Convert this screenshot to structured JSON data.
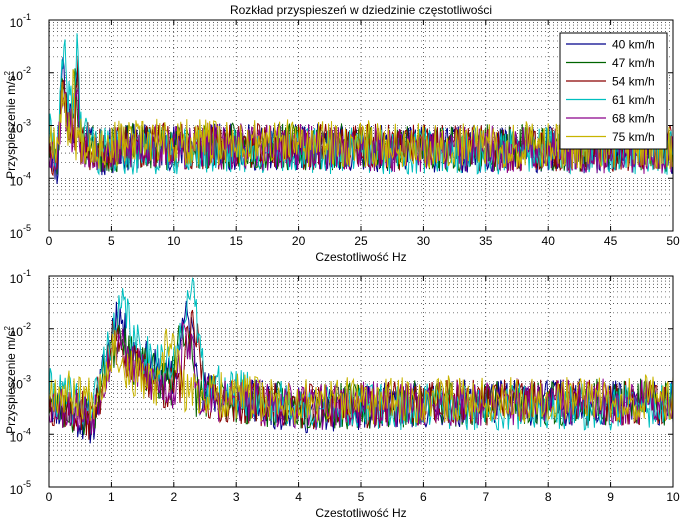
{
  "figure": {
    "background": "#ffffff"
  },
  "chart_data": [
    {
      "type": "line",
      "title": "Rozkład przyspieszeń w dziedzinie częstotliwości",
      "xlabel": "Czestotliwość Hz",
      "ylabel": "Przyspieszenie m/s",
      "ylabel_exponent": "2",
      "xlim": [
        0,
        50
      ],
      "ylim_exp": [
        -5,
        -1
      ],
      "yscale": "log",
      "xticks": [
        0,
        5,
        10,
        15,
        20,
        25,
        30,
        35,
        40,
        45,
        50
      ],
      "yticks": [
        "10",
        "10",
        "10",
        "10",
        "10"
      ],
      "ytick_exponents": [
        "-1",
        "-2",
        "-3",
        "-4",
        "-5"
      ],
      "grid": "dotted",
      "legend_position": "top-right",
      "series": [
        {
          "name": "40 km/h",
          "color": "#00008b",
          "peaks": [
            [
              1.1,
              0.024
            ],
            [
              2.2,
              0.018
            ]
          ],
          "seed": 11,
          "base": [
            [
              0,
              0.00055
            ],
            [
              0.7,
              0.0002
            ],
            [
              1.0,
              0.01
            ],
            [
              1.8,
              0.0015
            ],
            [
              2.6,
              0.0007
            ],
            [
              4,
              0.00035
            ],
            [
              7,
              0.0005
            ],
            [
              50,
              0.0004
            ]
          ]
        },
        {
          "name": "47 km/h",
          "color": "#006400",
          "peaks": [
            [
              1.15,
              0.012
            ],
            [
              2.15,
              0.012
            ]
          ],
          "seed": 23,
          "base": [
            [
              0,
              0.0005
            ],
            [
              0.7,
              0.00025
            ],
            [
              1.0,
              0.006
            ],
            [
              1.8,
              0.0012
            ],
            [
              2.6,
              0.0006
            ],
            [
              4,
              0.0004
            ],
            [
              7,
              0.0005
            ],
            [
              50,
              0.00045
            ]
          ]
        },
        {
          "name": "54 km/h",
          "color": "#8b0000",
          "peaks": [
            [
              1.1,
              0.01
            ],
            [
              2.3,
              0.01
            ]
          ],
          "seed": 37,
          "base": [
            [
              0,
              0.0005
            ],
            [
              0.7,
              0.00025
            ],
            [
              1.0,
              0.005
            ],
            [
              1.8,
              0.001
            ],
            [
              2.6,
              0.0006
            ],
            [
              4,
              0.0004
            ],
            [
              7,
              0.0005
            ],
            [
              50,
              0.00045
            ]
          ]
        },
        {
          "name": "61 km/h",
          "color": "#00bfbf",
          "peaks": [
            [
              1.2,
              0.03
            ],
            [
              2.25,
              0.05
            ]
          ],
          "seed": 41,
          "base": [
            [
              0,
              0.0008
            ],
            [
              0.7,
              0.0004
            ],
            [
              1.0,
              0.01
            ],
            [
              1.8,
              0.003
            ],
            [
              2.6,
              0.001
            ],
            [
              4,
              0.0004
            ],
            [
              7,
              0.0004
            ],
            [
              50,
              0.0004
            ]
          ]
        },
        {
          "name": "68 km/h",
          "color": "#8b008b",
          "peaks": [
            [
              1.15,
              0.009
            ],
            [
              2.2,
              0.008
            ]
          ],
          "seed": 53,
          "base": [
            [
              0,
              0.0005
            ],
            [
              0.7,
              0.0003
            ],
            [
              1.0,
              0.004
            ],
            [
              1.8,
              0.001
            ],
            [
              2.6,
              0.0006
            ],
            [
              4,
              0.0004
            ],
            [
              7,
              0.0005
            ],
            [
              50,
              0.0004
            ]
          ]
        },
        {
          "name": "75 km/h",
          "color": "#c8b400",
          "peaks": [
            [
              1.05,
              0.006
            ],
            [
              1.95,
              0.007
            ]
          ],
          "seed": 67,
          "base": [
            [
              0,
              0.0009
            ],
            [
              0.7,
              0.0006
            ],
            [
              1.0,
              0.003
            ],
            [
              1.8,
              0.0008
            ],
            [
              2.6,
              0.0007
            ],
            [
              4,
              0.0005
            ],
            [
              7,
              0.0006
            ],
            [
              50,
              0.0005
            ]
          ]
        }
      ]
    },
    {
      "type": "line",
      "title": "",
      "xlabel": "Czestotliwość Hz",
      "ylabel": "Przyspieszenie m/s",
      "ylabel_exponent": "2",
      "xlim": [
        0,
        10
      ],
      "ylim_exp": [
        -5,
        -1
      ],
      "yscale": "log",
      "xticks": [
        0,
        1,
        2,
        3,
        4,
        5,
        6,
        7,
        8,
        9,
        10
      ],
      "yticks": [
        "10",
        "10",
        "10",
        "10",
        "10"
      ],
      "ytick_exponents": [
        "-1",
        "-2",
        "-3",
        "-4",
        "-5"
      ],
      "grid": "dotted",
      "legend_position": "none",
      "series_ref": "same as upper panel (zoom 0–10 Hz)"
    }
  ]
}
